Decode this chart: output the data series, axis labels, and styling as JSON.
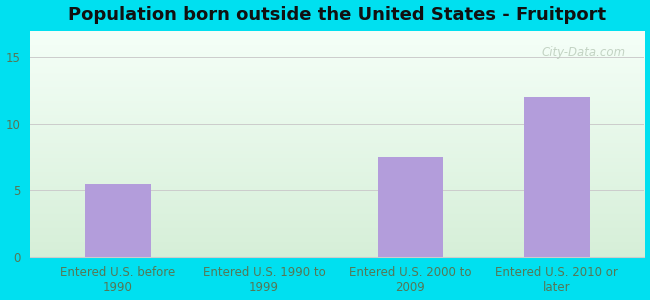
{
  "title": "Population born outside the United States - Fruitport",
  "categories": [
    "Entered U.S. before\n1990",
    "Entered U.S. 1990 to\n1999",
    "Entered U.S. 2000 to\n2009",
    "Entered U.S. 2010 or\nlater"
  ],
  "values": [
    5.5,
    0,
    7.5,
    12.0
  ],
  "bar_color": "#b39ddb",
  "ylim": [
    0,
    17
  ],
  "yticks": [
    0,
    5,
    10,
    15
  ],
  "background_outer": "#00e0f0",
  "grad_top": "#f5fff8",
  "grad_bottom": "#d6efd8",
  "grid_color": "#cccccc",
  "title_fontsize": 13,
  "tick_label_fontsize": 8.5,
  "tick_label_color": "#557755",
  "watermark_text": "City-Data.com",
  "watermark_color": "#bbccbb",
  "bar_width": 0.45
}
